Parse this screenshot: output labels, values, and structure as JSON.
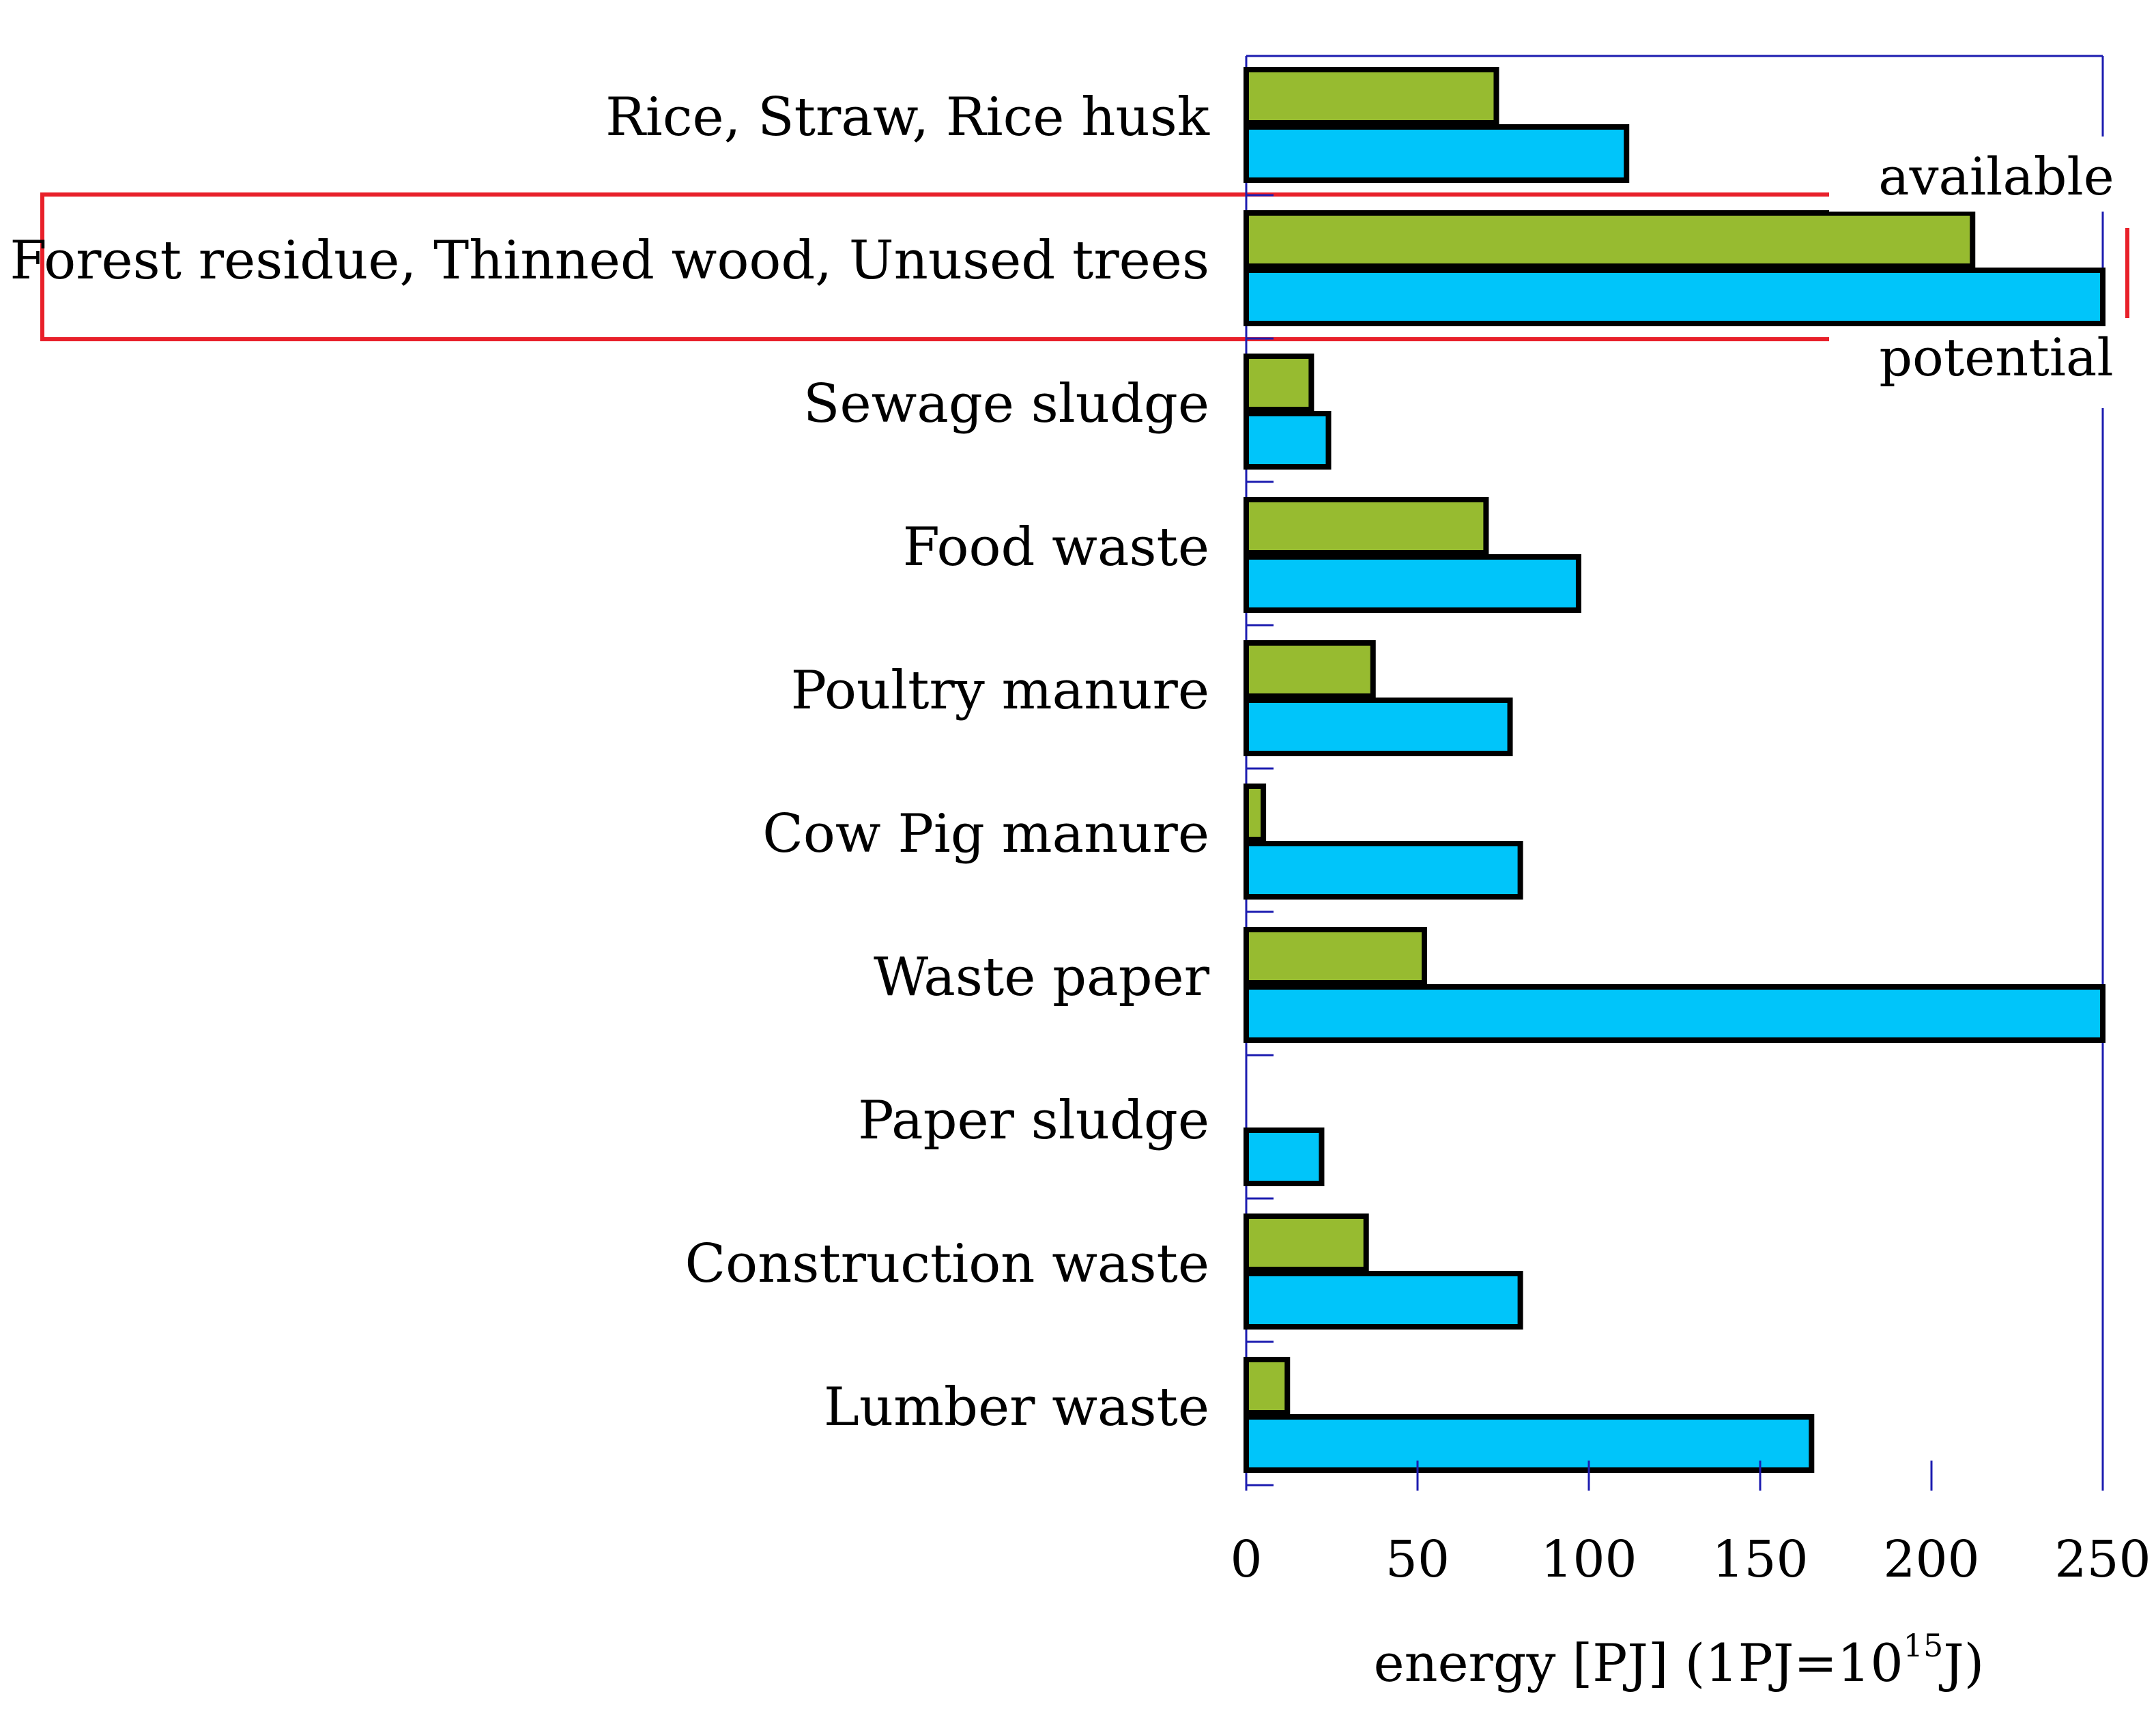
{
  "chart_data": {
    "type": "bar",
    "orientation": "horizontal",
    "title": "",
    "categories": [
      "Rice, Straw, Rice husk",
      "Forest residue, Thinned wood, Unused trees",
      "Sewage sludge",
      "Food waste",
      "Poultry manure",
      "Cow Pig manure",
      "Waste paper",
      "Paper sludge",
      "Construction waste",
      "Lumber waste"
    ],
    "series": [
      {
        "name": "available",
        "color": "#97bb30",
        "values": [
          73,
          212,
          19,
          70,
          37,
          5,
          52,
          0,
          35,
          12
        ]
      },
      {
        "name": "potential",
        "color": "#00c5fa",
        "values": [
          111,
          250,
          24,
          97,
          77,
          80,
          250,
          22,
          80,
          165
        ]
      }
    ],
    "highlighted_category": "Forest residue, Thinned wood, Unused trees",
    "highlight_color": "#e8202a",
    "axis_color": "#1c1cb0",
    "xlim": [
      0,
      250
    ],
    "xticks": [
      "0",
      "50",
      "100",
      "150",
      "200",
      "250"
    ],
    "xlabel": {
      "prefix": "energy [PJ] (1PJ=10",
      "superscript": "15",
      "suffix": "J)"
    },
    "ylabel": "",
    "legend": {
      "placement": "top-right",
      "available_label": "available",
      "potential_label": "potential"
    },
    "grid": false
  }
}
